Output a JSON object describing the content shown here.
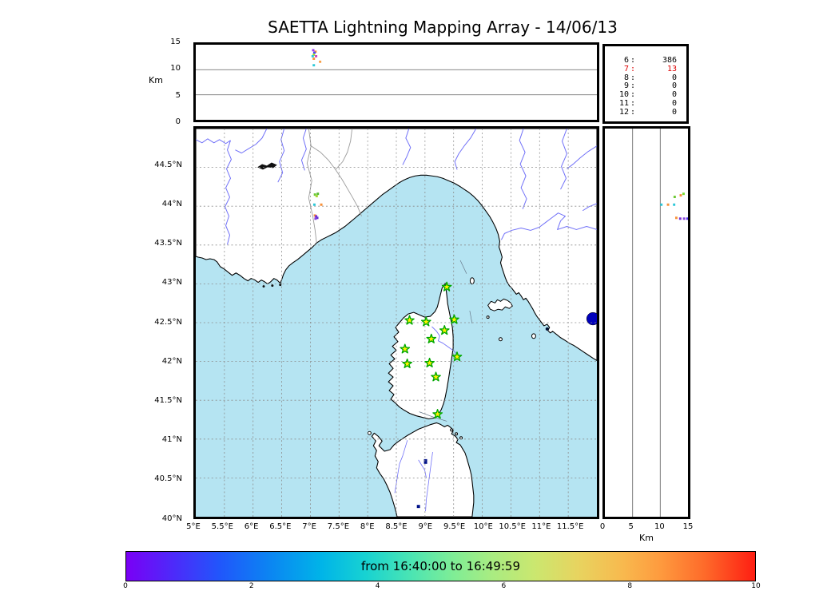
{
  "title": "SAETTA Lightning Mapping Array - 14/06/13",
  "colors": {
    "sea": "#B5E4F2",
    "land": "#FFFFFF",
    "coast": "#000000",
    "river": "#7070F8",
    "admin_border": "#9A9A9A",
    "grid": "#8C8C8C",
    "panel_grid": "#777777",
    "station_fill": "#FFF200",
    "station_stroke": "#00A800",
    "lake_blue": "#0000BB",
    "lake_dark": "#111111",
    "count_red": "#DD0000",
    "colorbar_stops": [
      "#7A00F5 0%",
      "#4A2DFA 8%",
      "#2057FB 15%",
      "#0B86F2 23%",
      "#00B4E8 31%",
      "#17D2D2 38%",
      "#49E4B4 45%",
      "#7FED96 52%",
      "#A8EC82 58%",
      "#CBE76F 65%",
      "#E8D35F 72%",
      "#F8B94E 79%",
      "#FE9A3E 85%",
      "#FE6A2A 92%",
      "#FE1E12 100%"
    ]
  },
  "alt_lon_panel": {
    "ylabel": "Km",
    "yticks": [
      {
        "label": "15",
        "km": 15
      },
      {
        "label": "10",
        "km": 10
      },
      {
        "label": "5",
        "km": 5
      },
      {
        "label": "0",
        "km": 0
      }
    ]
  },
  "counts_panel": {
    "rows": [
      {
        "label": "6",
        "value": "386",
        "red": false
      },
      {
        "label": "7",
        "value": "13",
        "red": true
      },
      {
        "label": "8",
        "value": "0",
        "red": false
      },
      {
        "label": "9",
        "value": "0",
        "red": false
      },
      {
        "label": "10",
        "value": "0",
        "red": false
      },
      {
        "label": "11",
        "value": "0",
        "red": false
      },
      {
        "label": "12",
        "value": "0",
        "red": false
      }
    ]
  },
  "map_panel": {
    "lat_ticks": [
      {
        "label": "44.5°N",
        "lat": 44.5
      },
      {
        "label": "44°N",
        "lat": 44
      },
      {
        "label": "43.5°N",
        "lat": 43.5
      },
      {
        "label": "43°N",
        "lat": 43
      },
      {
        "label": "42.5°N",
        "lat": 42.5
      },
      {
        "label": "42°N",
        "lat": 42
      },
      {
        "label": "41.5°N",
        "lat": 41.5
      },
      {
        "label": "41°N",
        "lat": 41
      },
      {
        "label": "40.5°N",
        "lat": 40.5
      },
      {
        "label": "40°N",
        "lat": 40
      }
    ],
    "lon_ticks": [
      {
        "label": "5°E",
        "lon": 5
      },
      {
        "label": "5.5°E",
        "lon": 5.5
      },
      {
        "label": "6°E",
        "lon": 6
      },
      {
        "label": "6.5°E",
        "lon": 6.5
      },
      {
        "label": "7°E",
        "lon": 7
      },
      {
        "label": "7.5°E",
        "lon": 7.5
      },
      {
        "label": "8°E",
        "lon": 8
      },
      {
        "label": "8.5°E",
        "lon": 8.5
      },
      {
        "label": "9°E",
        "lon": 9
      },
      {
        "label": "9.5°E",
        "lon": 9.5
      },
      {
        "label": "10°E",
        "lon": 10
      },
      {
        "label": "10.5°E",
        "lon": 10.5
      },
      {
        "label": "11°E",
        "lon": 11
      },
      {
        "label": "11.5°E",
        "lon": 11.5
      }
    ]
  },
  "alt_lat_panel": {
    "xlabel": "Km",
    "xticks": [
      {
        "label": "0",
        "km": 0
      },
      {
        "label": "5",
        "km": 5
      },
      {
        "label": "10",
        "km": 10
      },
      {
        "label": "15",
        "km": 15
      }
    ]
  },
  "colorbar": {
    "text": "from 16:40:00 to 16:49:59",
    "ticks": [
      {
        "label": "0",
        "v": 0
      },
      {
        "label": "2",
        "v": 2
      },
      {
        "label": "4",
        "v": 4
      },
      {
        "label": "6",
        "v": 6
      },
      {
        "label": "8",
        "v": 8
      },
      {
        "label": "10",
        "v": 10
      }
    ]
  },
  "chart_data": {
    "type": "scatter",
    "title": "SAETTA Lightning Mapping Array - 14/06/13",
    "time_window": "from 16:40:00 to 16:49:59",
    "colorbar_range": [
      0,
      10
    ],
    "source_counts": [
      [
        "6",
        386
      ],
      [
        "7",
        13
      ],
      [
        "8",
        0
      ],
      [
        "9",
        0
      ],
      [
        "10",
        0
      ],
      [
        "11",
        0
      ],
      [
        "12",
        0
      ]
    ],
    "panels": {
      "altitude_vs_longitude": {
        "ylabel": "Km",
        "ylim": [
          0,
          15
        ],
        "xlim_lon": [
          5,
          12
        ],
        "points": [
          {
            "lon": 7.05,
            "alt": 13.9,
            "color": "#9933EE"
          },
          {
            "lon": 7.09,
            "alt": 13.6,
            "color": "#F89038"
          },
          {
            "lon": 7.07,
            "alt": 13.4,
            "color": "#4444FF"
          },
          {
            "lon": 7.06,
            "alt": 13.0,
            "color": "#A8D832"
          },
          {
            "lon": 7.04,
            "alt": 12.7,
            "color": "#2BC8D8"
          },
          {
            "lon": 7.1,
            "alt": 12.7,
            "color": "#CC44BB"
          },
          {
            "lon": 7.06,
            "alt": 12.2,
            "color": "#F89038"
          },
          {
            "lon": 7.17,
            "alt": 11.6,
            "color": "#F8A048"
          },
          {
            "lon": 7.06,
            "alt": 10.9,
            "color": "#2BC8D8"
          }
        ]
      },
      "map": {
        "xlim_lon": [
          5,
          12
        ],
        "ylim_lat": [
          40,
          45
        ],
        "points": [
          {
            "lon": 7.08,
            "lat": 44.15,
            "color": "#6CC832"
          },
          {
            "lon": 7.11,
            "lat": 44.13,
            "color": "#A8D832"
          },
          {
            "lon": 7.13,
            "lat": 44.16,
            "color": "#55BB33"
          },
          {
            "lon": 7.07,
            "lat": 44.02,
            "color": "#2BC8D8"
          },
          {
            "lon": 7.19,
            "lat": 44.02,
            "color": "#F89038"
          },
          {
            "lon": 7.08,
            "lat": 43.88,
            "color": "#F89038"
          },
          {
            "lon": 7.1,
            "lat": 43.87,
            "color": "#7B2FD4"
          },
          {
            "lon": 7.12,
            "lat": 43.85,
            "color": "#5B2FD4"
          },
          {
            "lon": 7.09,
            "lat": 43.84,
            "color": "#8844DD"
          }
        ],
        "stations": [
          {
            "lon": 9.38,
            "lat": 42.96
          },
          {
            "lon": 8.73,
            "lat": 42.53
          },
          {
            "lon": 9.02,
            "lat": 42.51
          },
          {
            "lon": 9.51,
            "lat": 42.54
          },
          {
            "lon": 9.34,
            "lat": 42.4
          },
          {
            "lon": 9.11,
            "lat": 42.29
          },
          {
            "lon": 8.65,
            "lat": 42.16
          },
          {
            "lon": 9.56,
            "lat": 42.06
          },
          {
            "lon": 8.69,
            "lat": 41.97
          },
          {
            "lon": 9.08,
            "lat": 41.98
          },
          {
            "lon": 9.19,
            "lat": 41.8
          },
          {
            "lon": 9.22,
            "lat": 41.32
          }
        ]
      },
      "altitude_vs_latitude": {
        "xlabel": "Km",
        "xlim": [
          0,
          15
        ],
        "ylim_lat": [
          40,
          45
        ],
        "points": [
          {
            "alt": 12.6,
            "lat": 44.12,
            "color": "#6CC832"
          },
          {
            "alt": 13.7,
            "lat": 44.14,
            "color": "#F89038"
          },
          {
            "alt": 14.2,
            "lat": 44.16,
            "color": "#77DD33"
          },
          {
            "alt": 10.2,
            "lat": 44.02,
            "color": "#2BC8D8"
          },
          {
            "alt": 11.4,
            "lat": 44.02,
            "color": "#F89038"
          },
          {
            "alt": 12.5,
            "lat": 44.02,
            "color": "#2BC8D8"
          },
          {
            "alt": 12.9,
            "lat": 43.85,
            "color": "#F89038"
          },
          {
            "alt": 13.6,
            "lat": 43.84,
            "color": "#7B2FD4"
          },
          {
            "alt": 14.3,
            "lat": 43.84,
            "color": "#8844DD"
          },
          {
            "alt": 14.9,
            "lat": 43.84,
            "color": "#5533EE"
          }
        ]
      }
    }
  }
}
